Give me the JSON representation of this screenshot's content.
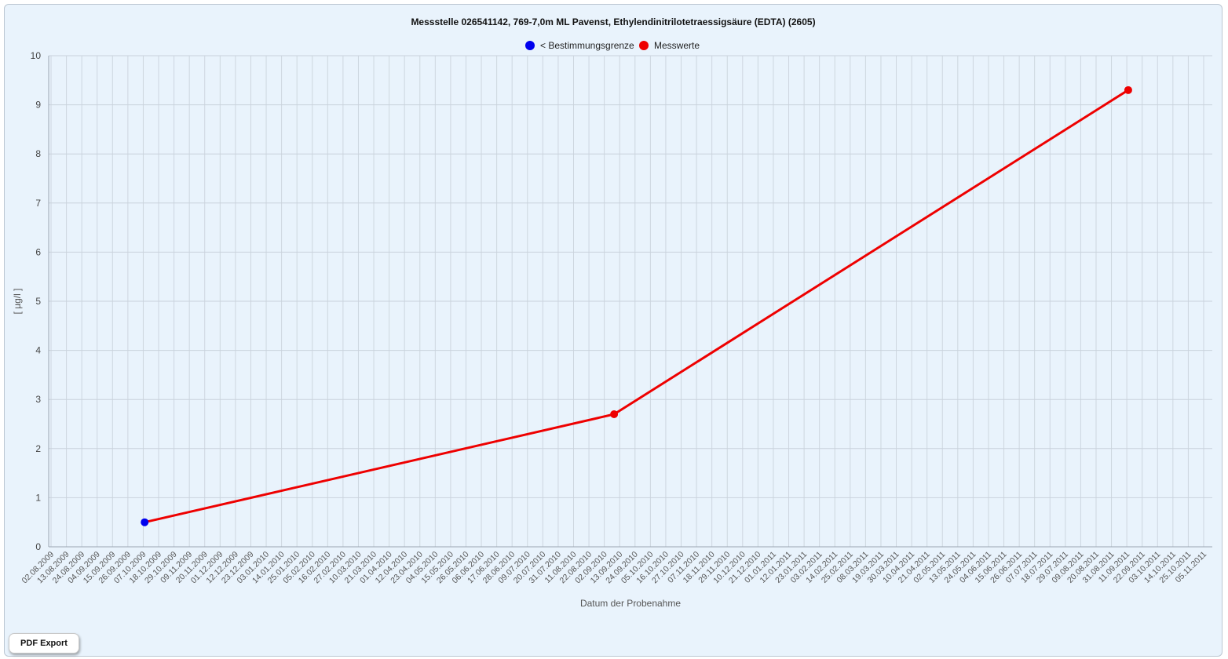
{
  "chart_data": {
    "type": "line",
    "title": "Messstelle 026541142, 769-7,0m ML Pavenst, Ethylendinitrilotetraessigsäure (EDTA) (2605)",
    "xlabel": "Datum der Probenahme",
    "ylabel": "[ µg/l ]",
    "ylim": [
      0,
      10
    ],
    "yticks": [
      "0",
      "1",
      "2",
      "3",
      "4",
      "5",
      "6",
      "7",
      "8",
      "9",
      "10"
    ],
    "grid": true,
    "legend_position": "top-center",
    "legend": [
      {
        "label": "< Bestimmungsgrenze",
        "color": "#0000ee"
      },
      {
        "label": "Messwerte",
        "color": "#ee0000"
      }
    ],
    "x_tick_labels": [
      "02.08.2009",
      "13.08.2009",
      "24.08.2009",
      "04.09.2009",
      "15.09.2009",
      "26.09.2009",
      "07.10.2009",
      "18.10.2009",
      "29.10.2009",
      "09.11.2009",
      "20.11.2009",
      "01.12.2009",
      "12.12.2009",
      "23.12.2009",
      "03.01.2010",
      "14.01.2010",
      "25.01.2010",
      "05.02.2010",
      "16.02.2010",
      "27.02.2010",
      "10.03.2010",
      "21.03.2010",
      "01.04.2010",
      "12.04.2010",
      "23.04.2010",
      "04.05.2010",
      "15.05.2010",
      "26.05.2010",
      "06.06.2010",
      "17.06.2010",
      "28.06.2010",
      "09.07.2010",
      "20.07.2010",
      "31.07.2010",
      "11.08.2010",
      "22.08.2010",
      "02.09.2010",
      "13.09.2010",
      "24.09.2010",
      "05.10.2010",
      "16.10.2010",
      "27.10.2010",
      "07.11.2010",
      "18.11.2010",
      "29.11.2010",
      "10.12.2010",
      "21.12.2010",
      "01.01.2011",
      "12.01.2011",
      "23.01.2011",
      "03.02.2011",
      "14.02.2011",
      "25.02.2011",
      "08.03.2011",
      "19.03.2011",
      "30.03.2011",
      "10.04.2011",
      "21.04.2011",
      "02.05.2011",
      "13.05.2011",
      "24.05.2011",
      "04.06.2011",
      "15.06.2011",
      "26.06.2011",
      "07.07.2011",
      "18.07.2011",
      "29.07.2011",
      "09.08.2011",
      "20.08.2011",
      "31.08.2011",
      "11.09.2011",
      "22.09.2011",
      "03.10.2011",
      "14.10.2011",
      "25.10.2011",
      "05.11.2011"
    ],
    "series": [
      {
        "name": "Messwerte",
        "line_color": "#ee0000",
        "points": [
          {
            "x": "2009-10-08",
            "y": 0.5,
            "category": "< Bestimmungsgrenze"
          },
          {
            "x": "2010-09-09",
            "y": 2.7,
            "category": "Messwerte"
          },
          {
            "x": "2011-09-12",
            "y": 9.3,
            "category": "Messwerte"
          }
        ]
      }
    ]
  },
  "buttons": {
    "pdf_export": "PDF Export"
  }
}
